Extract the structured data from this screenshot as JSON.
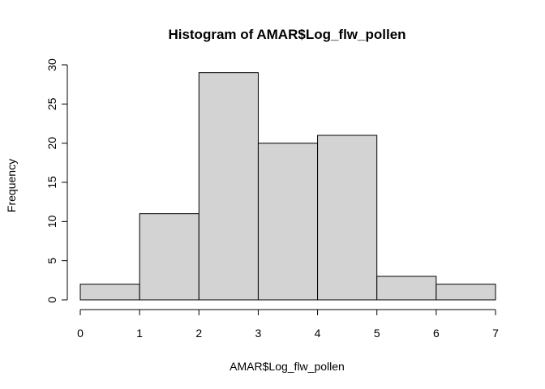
{
  "chart_data": {
    "type": "bar",
    "title": "Histogram of AMAR$Log_flw_pollen",
    "xlabel": "AMAR$Log_flw_pollen",
    "ylabel": "Frequency",
    "bins": [
      {
        "from": 0,
        "to": 1,
        "count": 2
      },
      {
        "from": 1,
        "to": 2,
        "count": 11
      },
      {
        "from": 2,
        "to": 3,
        "count": 29
      },
      {
        "from": 3,
        "to": 4,
        "count": 20
      },
      {
        "from": 4,
        "to": 5,
        "count": 21
      },
      {
        "from": 5,
        "to": 6,
        "count": 3
      },
      {
        "from": 6,
        "to": 7,
        "count": 2
      }
    ],
    "xlim": [
      0,
      7
    ],
    "ylim": [
      0,
      30
    ],
    "x_ticks": [
      "0",
      "1",
      "2",
      "3",
      "4",
      "5",
      "6",
      "7"
    ],
    "y_ticks": [
      "0",
      "5",
      "10",
      "15",
      "20",
      "25",
      "30"
    ],
    "bar_color": "#d3d3d3",
    "edge_color": "#000000",
    "grid": false
  }
}
